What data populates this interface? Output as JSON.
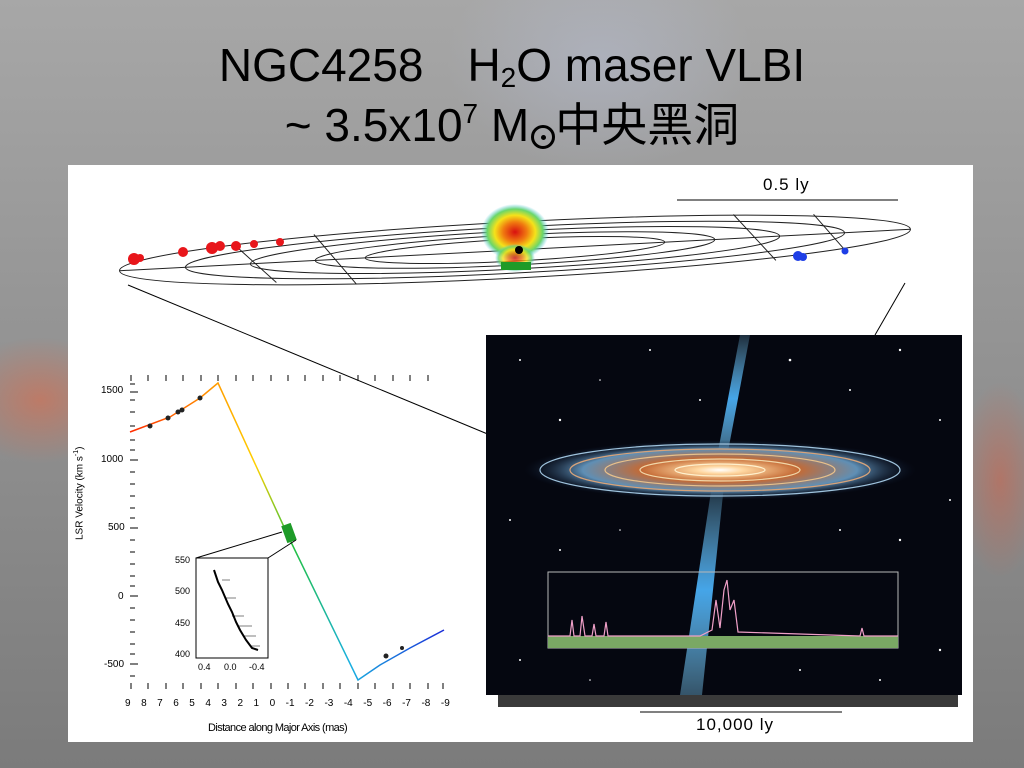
{
  "title": {
    "line1_part1": "NGC4258",
    "line1_h": "H",
    "line1_sub": "2",
    "line1_part2": "O maser VLBI",
    "line2_prefix": "~ 3.5x10",
    "line2_sup": "7",
    "line2_m": " M",
    "line2_cjk": "中央黑洞"
  },
  "disk_figure": {
    "scale_label": "0.5 ly"
  },
  "plot": {
    "ylabel": "LSR Velocity (km s",
    "ylabel_exp": "-1",
    "xlabel": "Distance along Major Axis (mas)",
    "yticks": [
      "1500",
      "1000",
      "500",
      "0",
      "-500"
    ],
    "xticks": [
      "9",
      "8",
      "7",
      "6",
      "5",
      "4",
      "3",
      "2",
      "1",
      "0",
      "-1",
      "-2",
      "-3",
      "-4",
      "-5",
      "-6",
      "-7",
      "-8",
      "-9"
    ],
    "inset": {
      "yticks": [
        "550",
        "500",
        "450",
        "400"
      ],
      "xticks": [
        "0.4",
        "0.0",
        "-0.4"
      ]
    }
  },
  "artwork": {
    "scale_label": "10,000 ly"
  },
  "colors": {
    "red_masers": "#e8161b",
    "blue_masers": "#1e3ee6",
    "systemic_masers": "#1e9b28"
  }
}
